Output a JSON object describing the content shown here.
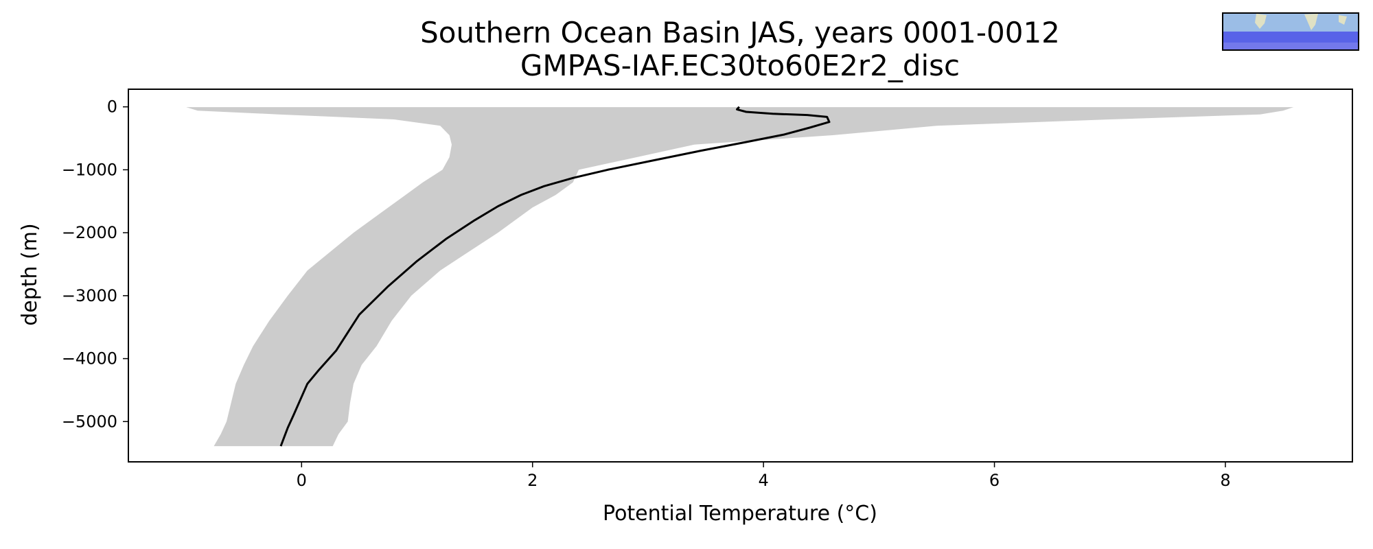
{
  "chart_data": {
    "type": "line",
    "title": [
      "Southern Ocean Basin JAS, years 0001-0012",
      "GMPAS-IAF.EC30to60E2r2_disc"
    ],
    "xlabel": "Potential Temperature (°C)",
    "ylabel": "depth (m)",
    "xlim": [
      -1.5,
      9.1
    ],
    "ylim": [
      -5640,
      280
    ],
    "xticks": [
      0,
      2,
      4,
      6,
      8
    ],
    "yticks": [
      0,
      -1000,
      -2000,
      -3000,
      -4000,
      -5000
    ],
    "grid": false,
    "series": [
      {
        "kind": "line",
        "color": "#000000",
        "x": [
          3.79,
          3.77,
          3.85,
          4.08,
          4.38,
          4.55,
          4.57,
          4.4,
          4.18,
          3.85,
          3.45,
          3.05,
          2.65,
          2.35,
          2.1,
          1.9,
          1.7,
          1.5,
          1.25,
          1.0,
          0.75,
          0.5,
          0.3,
          0.15,
          0.05,
          -0.01,
          -0.07,
          -0.12,
          -0.18
        ],
        "y": [
          0,
          -40,
          -80,
          -110,
          -130,
          -160,
          -240,
          -330,
          -440,
          -560,
          -700,
          -850,
          -1000,
          -1130,
          -1260,
          -1400,
          -1580,
          -1800,
          -2100,
          -2450,
          -2850,
          -3300,
          -3870,
          -4180,
          -4400,
          -4650,
          -4900,
          -5100,
          -5390
        ]
      },
      {
        "kind": "band",
        "color": "#cccccc",
        "y": [
          -5,
          -60,
          -120,
          -200,
          -300,
          -450,
          -600,
          -800,
          -1000,
          -1200,
          -1400,
          -1600,
          -1800,
          -2000,
          -2300,
          -2600,
          -3000,
          -3400,
          -3800,
          -4100,
          -4400,
          -4700,
          -5000,
          -5200,
          -5390
        ],
        "x_low": [
          -1.0,
          -0.9,
          -0.2,
          0.8,
          1.2,
          1.28,
          1.3,
          1.28,
          1.22,
          1.05,
          0.9,
          0.75,
          0.6,
          0.45,
          0.25,
          0.05,
          -0.12,
          -0.28,
          -0.42,
          -0.5,
          -0.57,
          -0.61,
          -0.65,
          -0.7,
          -0.76
        ],
        "x_high": [
          8.59,
          8.5,
          8.3,
          7.0,
          5.5,
          4.6,
          3.4,
          2.9,
          2.4,
          2.35,
          2.2,
          2.0,
          1.85,
          1.7,
          1.45,
          1.2,
          0.95,
          0.78,
          0.65,
          0.52,
          0.45,
          0.42,
          0.4,
          0.32,
          0.27
        ]
      }
    ]
  }
}
